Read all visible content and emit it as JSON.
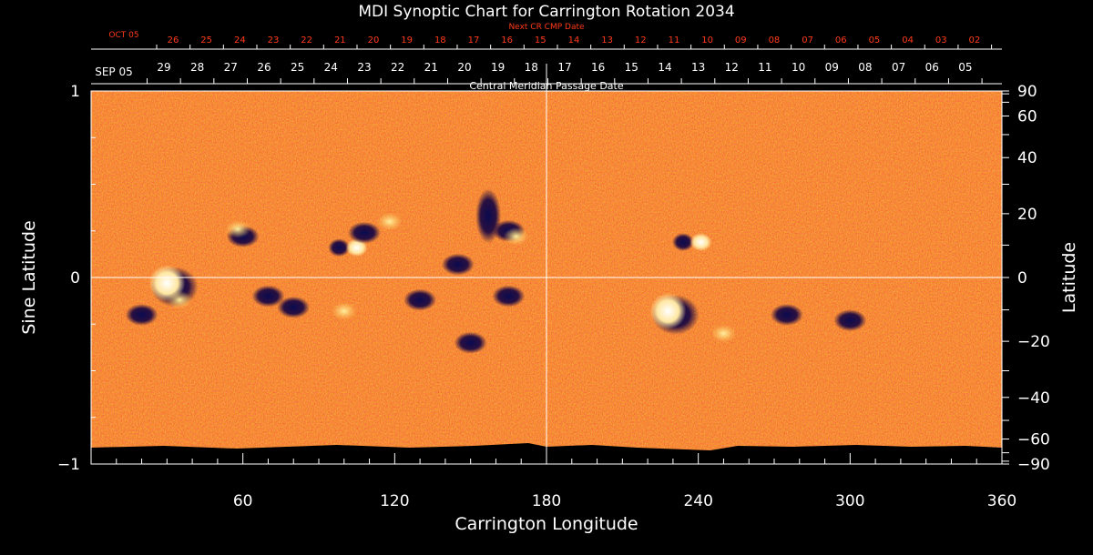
{
  "chart_data": {
    "type": "heatmap",
    "title": "MDI Synoptic Chart for Carrington Rotation 2034",
    "xlabel": "Carrington Longitude",
    "ylabel_left": "Sine Latitude",
    "ylabel_right": "Latitude",
    "top_axis_label": "Central Meridian Passage Date",
    "next_cr_label": "Next CR CMP Date",
    "xlim": [
      0,
      360
    ],
    "ylim": [
      -1,
      1
    ],
    "x_ticks": [
      60,
      120,
      180,
      240,
      300,
      360
    ],
    "y_ticks_left": [
      {
        "value": 1,
        "label": "1"
      },
      {
        "value": 0,
        "label": "0"
      },
      {
        "value": -1,
        "label": "−1"
      }
    ],
    "y_ticks_right": [
      {
        "deg": 90,
        "label": "90"
      },
      {
        "deg": 60,
        "label": "60"
      },
      {
        "deg": 40,
        "label": "40"
      },
      {
        "deg": 20,
        "label": "20"
      },
      {
        "deg": 0,
        "label": "0"
      },
      {
        "deg": -20,
        "label": "−20"
      },
      {
        "deg": -40,
        "label": "−40"
      },
      {
        "deg": -60,
        "label": "−60"
      },
      {
        "deg": -90,
        "label": "−90"
      }
    ],
    "cmp_dates": {
      "start_label": "SEP 05",
      "days": [
        "29",
        "28",
        "27",
        "26",
        "25",
        "24",
        "23",
        "22",
        "21",
        "20",
        "19",
        "18",
        "17",
        "16",
        "15",
        "14",
        "13",
        "12",
        "11",
        "10",
        "09",
        "08",
        "07",
        "06",
        "05"
      ]
    },
    "next_cmp_dates": {
      "start_label": "OCT 05",
      "days": [
        "26",
        "25",
        "24",
        "23",
        "22",
        "21",
        "20",
        "19",
        "18",
        "17",
        "16",
        "15",
        "14",
        "13",
        "12",
        "11",
        "10",
        "09",
        "08",
        "07",
        "06",
        "05",
        "04",
        "03",
        "02"
      ]
    },
    "colormap": [
      "#000000",
      "#1a1a6e",
      "#3a0020",
      "#b82000",
      "#ff4a10",
      "#ff9a30",
      "#ffe080",
      "#ffffff"
    ],
    "background_value": "orange-red",
    "regions": [
      {
        "lon": 101,
        "sinlat": 0.16,
        "polarity": "bipolar"
      },
      {
        "lon": 228,
        "sinlat": -0.18,
        "polarity": "positive"
      },
      {
        "lon": 157,
        "sinlat": 0.33,
        "polarity": "negative"
      },
      {
        "lon": 237,
        "sinlat": 0.19,
        "polarity": "bipolar"
      },
      {
        "lon": 30,
        "sinlat": -0.03,
        "polarity": "positive"
      }
    ]
  }
}
